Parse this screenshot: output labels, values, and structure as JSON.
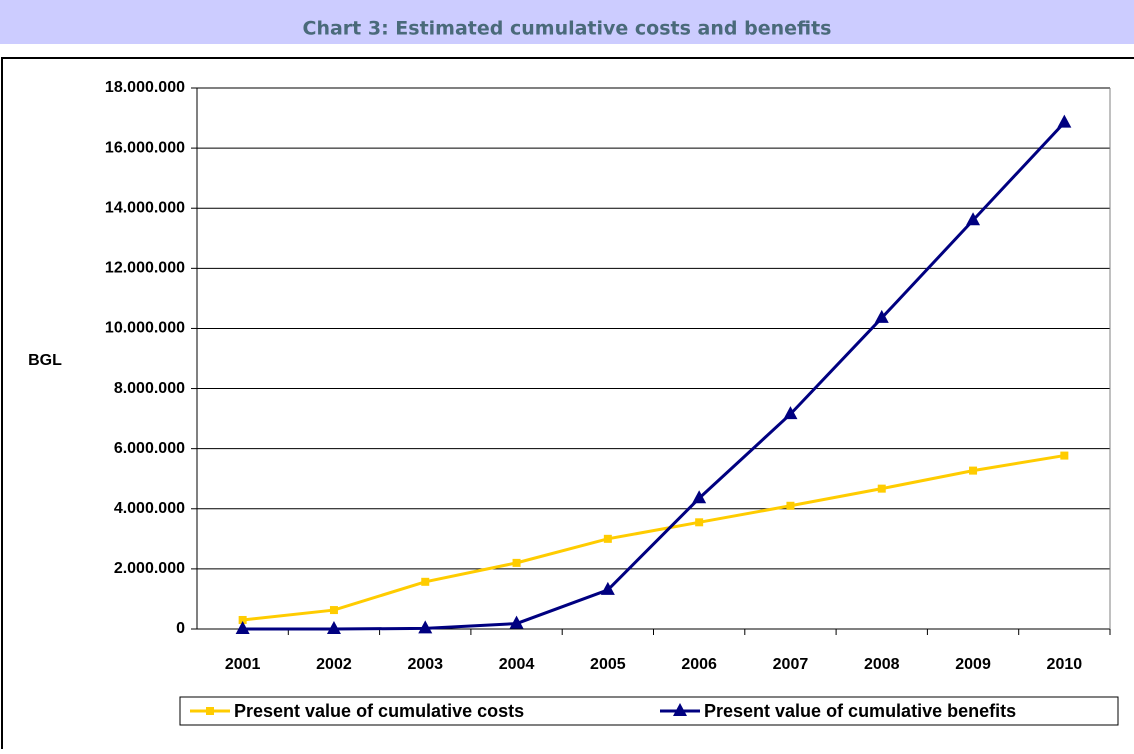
{
  "chart_data": {
    "type": "line",
    "title": "Chart 3: Estimated cumulative costs and benefits",
    "y_label": "BGL",
    "categories": [
      "2001",
      "2002",
      "2003",
      "2004",
      "2005",
      "2006",
      "2007",
      "2008",
      "2009",
      "2010"
    ],
    "series": [
      {
        "name": "Present value of cumulative costs",
        "color": "#ffcc00",
        "marker": "square",
        "values": [
          300000,
          630000,
          1570000,
          2200000,
          3000000,
          3550000,
          4100000,
          4670000,
          5270000,
          5770000
        ]
      },
      {
        "name": "Present value of cumulative benefits",
        "color": "#000080",
        "marker": "triangle",
        "values": [
          0,
          0,
          20000,
          180000,
          1300000,
          4350000,
          7150000,
          10350000,
          13600000,
          16850000
        ]
      }
    ],
    "ylim": [
      0,
      18000000
    ],
    "yticks": [
      0,
      {
        "value": 2000000,
        "label": "2.000.000"
      },
      {
        "value": 4000000,
        "label": "4.000.000"
      },
      {
        "value": 6000000,
        "label": "6.000.000"
      },
      {
        "value": 8000000,
        "label": "8.000.000"
      },
      {
        "value": 10000000,
        "label": "10.000.000"
      },
      {
        "value": 12000000,
        "label": "12.000.000"
      },
      {
        "value": 14000000,
        "label": "14.000.000"
      },
      {
        "value": 16000000,
        "label": "16.000.000"
      },
      {
        "value": 18000000,
        "label": "18.000.000"
      }
    ],
    "grid": true,
    "legend": "bottom"
  }
}
